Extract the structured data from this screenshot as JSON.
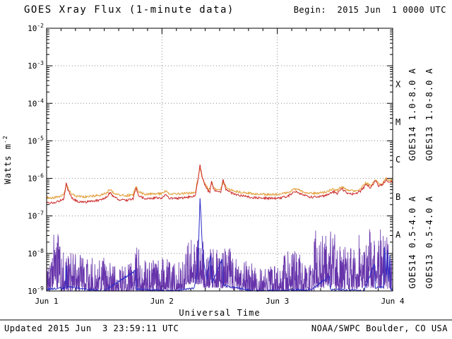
{
  "header": {
    "begin_label": "Begin:  2015 Jun  1 0000 UTC"
  },
  "footer": {
    "updated": "Updated 2015 Jun  3 23:59:11 UTC",
    "source": "NOAA/SWPC Boulder, CO USA"
  },
  "chart_data": {
    "type": "line",
    "title": "GOES Xray Flux (1-minute data)",
    "xlabel": "Universal Time",
    "ylabel": "Watts m-2",
    "ylabel_main": "Watts m",
    "ylabel_sup": "-2",
    "x_ticks": [
      "Jun 1",
      "Jun 2",
      "Jun 3",
      "Jun 4"
    ],
    "xlim_days": [
      0,
      3
    ],
    "ylog_range": [
      -9,
      -2
    ],
    "ylim": [
      "1e-9",
      "1e-2"
    ],
    "y_tick_exponents": [
      "-2",
      "-3",
      "-4",
      "-5",
      "-6",
      "-7",
      "-8",
      "-9"
    ],
    "grid": true,
    "legend_position": "right-rotated",
    "flare_classes": [
      {
        "label": "X",
        "log_center": -3.5
      },
      {
        "label": "M",
        "log_center": -4.5
      },
      {
        "label": "C",
        "log_center": -5.5
      },
      {
        "label": "B",
        "log_center": -6.5
      },
      {
        "label": "A",
        "log_center": -7.5
      }
    ],
    "series": [
      {
        "name": "goes14-long",
        "label": "GOES14 1.0-8.0 A",
        "color": "#cc2a2a",
        "type": "line",
        "jitter": 0.06,
        "points": [
          [
            0.0,
            2.3e-07
          ],
          [
            0.05,
            2.2e-07
          ],
          [
            0.1,
            2.4e-07
          ],
          [
            0.15,
            2.8e-07
          ],
          [
            0.17,
            7.5e-07
          ],
          [
            0.19,
            4.5e-07
          ],
          [
            0.22,
            3e-07
          ],
          [
            0.27,
            2.4e-07
          ],
          [
            0.33,
            2.3e-07
          ],
          [
            0.4,
            2.5e-07
          ],
          [
            0.47,
            2.7e-07
          ],
          [
            0.52,
            3.2e-07
          ],
          [
            0.55,
            4.3e-07
          ],
          [
            0.58,
            3.2e-07
          ],
          [
            0.63,
            2.7e-07
          ],
          [
            0.7,
            2.6e-07
          ],
          [
            0.75,
            2.8e-07
          ],
          [
            0.775,
            5.5e-07
          ],
          [
            0.8,
            3.4e-07
          ],
          [
            0.85,
            2.9e-07
          ],
          [
            0.92,
            3e-07
          ],
          [
            1.0,
            3e-07
          ],
          [
            1.035,
            3.8e-07
          ],
          [
            1.06,
            3e-07
          ],
          [
            1.12,
            2.9e-07
          ],
          [
            1.2,
            3.1e-07
          ],
          [
            1.27,
            3.3e-07
          ],
          [
            1.29,
            3.5e-07
          ],
          [
            1.315,
            1e-06
          ],
          [
            1.33,
            2.2e-06
          ],
          [
            1.345,
            1.2e-06
          ],
          [
            1.37,
            7e-07
          ],
          [
            1.4,
            4.5e-07
          ],
          [
            1.415,
            4.3e-07
          ],
          [
            1.43,
            9e-07
          ],
          [
            1.445,
            5.2e-07
          ],
          [
            1.47,
            4.4e-07
          ],
          [
            1.51,
            4.2e-07
          ],
          [
            1.53,
            9e-07
          ],
          [
            1.555,
            5.2e-07
          ],
          [
            1.59,
            4.2e-07
          ],
          [
            1.64,
            3.7e-07
          ],
          [
            1.7,
            3.4e-07
          ],
          [
            1.78,
            3.1e-07
          ],
          [
            1.86,
            3e-07
          ],
          [
            1.95,
            2.9e-07
          ],
          [
            2.02,
            3e-07
          ],
          [
            2.09,
            3.3e-07
          ],
          [
            2.13,
            4e-07
          ],
          [
            2.17,
            4.5e-07
          ],
          [
            2.21,
            3.7e-07
          ],
          [
            2.28,
            3.2e-07
          ],
          [
            2.35,
            3.2e-07
          ],
          [
            2.42,
            3.5e-07
          ],
          [
            2.48,
            4.4e-07
          ],
          [
            2.52,
            4e-07
          ],
          [
            2.56,
            5.3e-07
          ],
          [
            2.6,
            4.1e-07
          ],
          [
            2.66,
            3.8e-07
          ],
          [
            2.72,
            4.5e-07
          ],
          [
            2.77,
            6.8e-07
          ],
          [
            2.81,
            5.6e-07
          ],
          [
            2.85,
            8.8e-07
          ],
          [
            2.88,
            6.2e-07
          ],
          [
            2.91,
            6.8e-07
          ],
          [
            2.945,
            9.5e-07
          ],
          [
            2.97,
            7.6e-07
          ],
          [
            3.0,
            8.2e-07
          ]
        ]
      },
      {
        "name": "goes13-long",
        "label": "GOES13 1.0-8.0 A",
        "color": "#e09a30",
        "type": "line",
        "jitter": 0.06,
        "points": [
          [
            0.0,
            3.1e-07
          ],
          [
            0.05,
            3e-07
          ],
          [
            0.1,
            3.2e-07
          ],
          [
            0.15,
            3.6e-07
          ],
          [
            0.17,
            7e-07
          ],
          [
            0.19,
            5e-07
          ],
          [
            0.22,
            3.8e-07
          ],
          [
            0.27,
            3.3e-07
          ],
          [
            0.33,
            3.2e-07
          ],
          [
            0.4,
            3.4e-07
          ],
          [
            0.47,
            3.6e-07
          ],
          [
            0.52,
            4.1e-07
          ],
          [
            0.55,
            5.2e-07
          ],
          [
            0.58,
            4.1e-07
          ],
          [
            0.63,
            3.6e-07
          ],
          [
            0.7,
            3.5e-07
          ],
          [
            0.75,
            3.7e-07
          ],
          [
            0.775,
            6.3e-07
          ],
          [
            0.8,
            4.3e-07
          ],
          [
            0.85,
            3.8e-07
          ],
          [
            0.92,
            3.9e-07
          ],
          [
            1.0,
            3.9e-07
          ],
          [
            1.035,
            4.7e-07
          ],
          [
            1.06,
            3.9e-07
          ],
          [
            1.12,
            3.8e-07
          ],
          [
            1.2,
            4e-07
          ],
          [
            1.27,
            4.2e-07
          ],
          [
            1.29,
            4.4e-07
          ],
          [
            1.315,
            1.1e-06
          ],
          [
            1.33,
            1.9e-06
          ],
          [
            1.345,
            1.1e-06
          ],
          [
            1.37,
            7.5e-07
          ],
          [
            1.4,
            5.3e-07
          ],
          [
            1.415,
            5.1e-07
          ],
          [
            1.43,
            8.2e-07
          ],
          [
            1.445,
            5.9e-07
          ],
          [
            1.47,
            5.2e-07
          ],
          [
            1.51,
            5e-07
          ],
          [
            1.53,
            8.2e-07
          ],
          [
            1.555,
            5.9e-07
          ],
          [
            1.59,
            5e-07
          ],
          [
            1.64,
            4.5e-07
          ],
          [
            1.7,
            4.2e-07
          ],
          [
            1.78,
            3.9e-07
          ],
          [
            1.86,
            3.8e-07
          ],
          [
            1.95,
            3.7e-07
          ],
          [
            2.02,
            3.8e-07
          ],
          [
            2.09,
            4.1e-07
          ],
          [
            2.13,
            4.8e-07
          ],
          [
            2.17,
            5.3e-07
          ],
          [
            2.21,
            4.5e-07
          ],
          [
            2.28,
            4e-07
          ],
          [
            2.35,
            4e-07
          ],
          [
            2.42,
            4.3e-07
          ],
          [
            2.48,
            5.2e-07
          ],
          [
            2.52,
            4.8e-07
          ],
          [
            2.56,
            6.1e-07
          ],
          [
            2.6,
            4.9e-07
          ],
          [
            2.66,
            4.6e-07
          ],
          [
            2.72,
            5.3e-07
          ],
          [
            2.77,
            7.6e-07
          ],
          [
            2.81,
            6.4e-07
          ],
          [
            2.85,
            9.6e-07
          ],
          [
            2.88,
            7e-07
          ],
          [
            2.91,
            7.6e-07
          ],
          [
            2.945,
            1.05e-06
          ],
          [
            2.97,
            8.6e-07
          ],
          [
            3.0,
            9.2e-07
          ]
        ]
      },
      {
        "name": "goes14-short",
        "label": "GOES14 0.5-4.0 A",
        "color": "#2a2ac8",
        "type": "line",
        "jitter": 0.05,
        "points": [
          [
            0.0,
            1.1e-09
          ],
          [
            0.16,
            1.2e-09
          ],
          [
            0.17,
            5e-09
          ],
          [
            0.18,
            1.3e-09
          ],
          [
            0.5,
            1e-09
          ],
          [
            0.77,
            3.5e-09
          ],
          [
            0.78,
            1.1e-09
          ],
          [
            1.1,
            1e-09
          ],
          [
            1.28,
            1.2e-09
          ],
          [
            1.31,
            4e-09
          ],
          [
            1.325,
            9e-08
          ],
          [
            1.33,
            2.8e-07
          ],
          [
            1.34,
            7e-08
          ],
          [
            1.35,
            1.5e-08
          ],
          [
            1.365,
            5e-09
          ],
          [
            1.39,
            2e-09
          ],
          [
            1.42,
            9e-09
          ],
          [
            1.435,
            1.6e-09
          ],
          [
            1.52,
            7e-09
          ],
          [
            1.535,
            1.4e-09
          ],
          [
            1.8,
            1e-09
          ],
          [
            2.3,
            1.1e-09
          ],
          [
            2.45,
            2.5e-09
          ],
          [
            2.46,
            1.1e-09
          ],
          [
            2.75,
            1e-09
          ],
          [
            2.84,
            5e-09
          ],
          [
            2.85,
            1.2e-09
          ],
          [
            2.92,
            1.3e-09
          ],
          [
            2.93,
            1.5e-08
          ],
          [
            2.945,
            2.5e-09
          ],
          [
            2.955,
            1.2e-08
          ],
          [
            2.965,
            1.8e-09
          ],
          [
            2.975,
            9e-09
          ],
          [
            2.985,
            1.1e-09
          ],
          [
            3.0,
            1.1e-09
          ]
        ]
      },
      {
        "name": "goes13-short",
        "label": "GOES13 0.5-4.0 A",
        "color": "#6633aa",
        "type": "noise",
        "segments": [
          [
            0.0,
            0.05,
            1e-09,
            9e-09
          ],
          [
            0.05,
            0.13,
            1.2e-09,
            4.5e-08
          ],
          [
            0.13,
            0.3,
            1e-09,
            1.1e-08
          ],
          [
            0.3,
            0.5,
            1e-09,
            8e-09
          ],
          [
            0.5,
            0.76,
            9e-10,
            6e-09
          ],
          [
            0.76,
            0.8,
            1e-09,
            2.2e-08
          ],
          [
            0.8,
            1.0,
            9e-10,
            7e-09
          ],
          [
            1.0,
            1.2,
            1e-09,
            9e-09
          ],
          [
            1.2,
            1.36,
            1.5e-09,
            2.8e-08
          ],
          [
            1.36,
            1.6,
            1.2e-09,
            1.5e-08
          ],
          [
            1.6,
            1.8,
            1e-09,
            8e-09
          ],
          [
            1.8,
            2.05,
            9e-10,
            5e-09
          ],
          [
            2.05,
            2.2,
            1e-09,
            1.2e-08
          ],
          [
            2.2,
            2.32,
            9e-10,
            6e-09
          ],
          [
            2.32,
            2.5,
            1.2e-09,
            4.2e-08
          ],
          [
            2.5,
            2.7,
            1.1e-09,
            1.6e-08
          ],
          [
            2.7,
            2.92,
            1.2e-09,
            4.5e-08
          ],
          [
            2.92,
            3.0,
            1.1e-09,
            3e-08
          ]
        ]
      }
    ]
  }
}
